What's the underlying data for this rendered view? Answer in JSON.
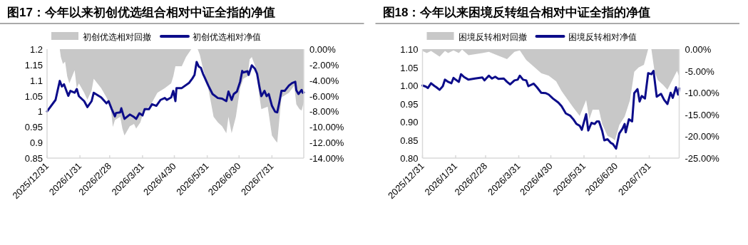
{
  "chart_data": [
    {
      "type": "line",
      "title": "图17：今年以来初创优选组合相对中证全指的净值",
      "legend": "top",
      "grid": false,
      "xlim": [
        "2025-12-31",
        "2026-08-30"
      ],
      "xticks": [
        {
          "value": "2025-12-31",
          "label": "2025/12/31"
        },
        {
          "value": "2026-01-31",
          "label": "2026/1/31"
        },
        {
          "value": "2026-02-28",
          "label": "2026/2/28"
        },
        {
          "value": "2026-03-31",
          "label": "2026/3/31"
        },
        {
          "value": "2026-04-30",
          "label": "2026/4/30"
        },
        {
          "value": "2026-05-31",
          "label": "2026/5/31"
        },
        {
          "value": "2026-06-30",
          "label": "2026/6/30"
        },
        {
          "value": "2026-07-31",
          "label": "2026/7/31"
        }
      ],
      "ylim": [
        0.85,
        1.2
      ],
      "yticks": [
        0.85,
        0.9,
        0.95,
        1,
        1.05,
        1.1,
        1.15,
        1.2
      ],
      "y2lim": [
        -14,
        0
      ],
      "y2ticks": [
        {
          "value": -14,
          "label": "-14.00%"
        },
        {
          "value": -12,
          "label": "-12.00%"
        },
        {
          "value": -10,
          "label": "-10.00%"
        },
        {
          "value": -8,
          "label": "-8.00%"
        },
        {
          "value": -6,
          "label": "-6.00%"
        },
        {
          "value": -4,
          "label": "-4.00%"
        },
        {
          "value": -2,
          "label": "-2.00%"
        },
        {
          "value": 0,
          "label": "0.00%"
        }
      ],
      "series": [
        {
          "name": "初创优选相对回撤",
          "type": "area",
          "axis": "y2",
          "color": "#c8c8c8",
          "x": [
            "2025-12-31",
            "2026-01-12",
            "2026-01-13",
            "2026-01-15",
            "2026-01-17",
            "2026-01-19",
            "2026-01-21",
            "2026-01-26",
            "2026-01-28",
            "2026-01-30",
            "2026-02-04",
            "2026-02-07",
            "2026-02-11",
            "2026-02-13",
            "2026-02-20",
            "2026-02-25",
            "2026-03-01",
            "2026-03-03",
            "2026-03-05",
            "2026-03-10",
            "2026-03-12",
            "2026-03-14",
            "2026-03-19",
            "2026-03-23",
            "2026-03-25",
            "2026-03-29",
            "2026-04-01",
            "2026-04-08",
            "2026-04-14",
            "2026-04-21",
            "2026-04-27",
            "2026-04-29",
            "2026-05-01",
            "2026-05-07",
            "2026-05-11",
            "2026-05-15",
            "2026-05-16",
            "2026-05-22",
            "2026-05-24",
            "2026-05-27",
            "2026-05-31",
            "2026-06-03",
            "2026-06-06",
            "2026-06-10",
            "2026-06-14",
            "2026-06-18",
            "2026-06-20",
            "2026-06-23",
            "2026-06-27",
            "2026-07-01",
            "2026-07-04",
            "2026-07-08",
            "2026-07-10",
            "2026-07-12",
            "2026-07-16",
            "2026-07-19",
            "2026-07-21",
            "2026-07-27",
            "2026-07-31",
            "2026-08-03",
            "2026-08-05",
            "2026-08-07",
            "2026-08-09",
            "2026-08-16",
            "2026-08-21",
            "2026-08-23",
            "2026-08-26",
            "2026-08-28",
            "2026-08-30"
          ],
          "values": [
            0,
            0,
            -1.0,
            -1.9,
            -1.6,
            -3.5,
            -4.4,
            -2.7,
            -5.0,
            -4.4,
            -5.6,
            -6.5,
            -5.3,
            -3.8,
            -5.0,
            -6.2,
            -7.4,
            -10.0,
            -9.1,
            -8.7,
            -10.2,
            -11.1,
            -9.9,
            -9.6,
            -10.2,
            -9.4,
            -8.0,
            -7.1,
            -5.6,
            -5.0,
            -4.4,
            -3.5,
            -2.2,
            -2.2,
            -1.0,
            -0.2,
            0,
            0,
            -0.7,
            -2.5,
            -4.4,
            -6.5,
            -8.7,
            -9.4,
            -9.9,
            -10.8,
            -8.7,
            -10.8,
            -8.7,
            -5.0,
            -3.8,
            -3.5,
            -1.3,
            -1.0,
            -2.5,
            -5.9,
            -7.7,
            -7.4,
            -11.1,
            -11.7,
            -12.0,
            -9.0,
            -6.2,
            -5.6,
            -4.7,
            -7.1,
            -7.7,
            -7.9,
            -6.8
          ]
        },
        {
          "name": "初创优选相对净值",
          "color": "#0c0c8a",
          "x": [
            "2025-12-31",
            "2026-01-08",
            "2026-01-10",
            "2026-01-12",
            "2026-01-14",
            "2026-01-16",
            "2026-01-20",
            "2026-01-22",
            "2026-01-26",
            "2026-01-28",
            "2026-01-30",
            "2026-02-04",
            "2026-02-07",
            "2026-02-11",
            "2026-02-13",
            "2026-02-20",
            "2026-02-25",
            "2026-02-27",
            "2026-03-02",
            "2026-03-05",
            "2026-03-06",
            "2026-03-10",
            "2026-03-11",
            "2026-03-13",
            "2026-03-14",
            "2026-03-19",
            "2026-03-23",
            "2026-03-25",
            "2026-03-28",
            "2026-03-31",
            "2026-04-02",
            "2026-04-06",
            "2026-04-09",
            "2026-04-13",
            "2026-04-17",
            "2026-04-21",
            "2026-04-23",
            "2026-04-27",
            "2026-04-29",
            "2026-05-01",
            "2026-05-02",
            "2026-05-07",
            "2026-05-14",
            "2026-05-17",
            "2026-05-19",
            "2026-05-21",
            "2026-05-23",
            "2026-05-25",
            "2026-05-27",
            "2026-05-29",
            "2026-06-01",
            "2026-06-05",
            "2026-06-10",
            "2026-06-14",
            "2026-06-18",
            "2026-06-20",
            "2026-06-23",
            "2026-06-25",
            "2026-06-28",
            "2026-07-01",
            "2026-07-03",
            "2026-07-04",
            "2026-07-08",
            "2026-07-09",
            "2026-07-12",
            "2026-07-15",
            "2026-07-17",
            "2026-07-19",
            "2026-07-21",
            "2026-07-24",
            "2026-07-26",
            "2026-07-28",
            "2026-07-31",
            "2026-08-03",
            "2026-08-05",
            "2026-08-07",
            "2026-08-09",
            "2026-08-12",
            "2026-08-16",
            "2026-08-19",
            "2026-08-22",
            "2026-08-23",
            "2026-08-25",
            "2026-08-28",
            "2026-08-29",
            "2026-08-30"
          ],
          "values": [
            1.0,
            1.037,
            1.068,
            1.098,
            1.08,
            1.087,
            1.05,
            1.066,
            1.06,
            1.072,
            1.049,
            1.033,
            1.014,
            1.033,
            1.06,
            1.045,
            1.026,
            1.033,
            1.007,
            0.984,
            0.995,
            0.997,
            1.01,
            0.987,
            0.976,
            0.99,
            0.982,
            0.976,
            0.994,
            0.987,
            1.007,
            1.007,
            1.023,
            1.018,
            1.037,
            1.043,
            1.037,
            1.045,
            1.066,
            1.033,
            1.075,
            1.075,
            1.092,
            1.106,
            1.117,
            1.159,
            1.144,
            1.14,
            1.121,
            1.106,
            1.083,
            1.056,
            1.043,
            1.041,
            1.033,
            1.064,
            1.037,
            1.056,
            1.064,
            1.095,
            1.13,
            1.125,
            1.129,
            1.117,
            1.148,
            1.137,
            1.121,
            1.083,
            1.049,
            1.066,
            1.049,
            1.056,
            1.018,
            0.999,
            0.997,
            1.03,
            1.066,
            1.066,
            1.083,
            1.091,
            1.095,
            1.068,
            1.056,
            1.069,
            1.06,
            1.061
          ]
        }
      ]
    },
    {
      "type": "line",
      "title": "图18：今年以来困境反转组合相对中证全指的净值",
      "legend": "top",
      "grid": false,
      "xlim": [
        "2025-12-31",
        "2026-08-28"
      ],
      "xticks": [
        {
          "value": "2025-12-31",
          "label": "2025/12/31"
        },
        {
          "value": "2026-01-31",
          "label": "2026/1/31"
        },
        {
          "value": "2026-02-28",
          "label": "2026/2/28"
        },
        {
          "value": "2026-03-31",
          "label": "2026/3/31"
        },
        {
          "value": "2026-04-30",
          "label": "2026/4/30"
        },
        {
          "value": "2026-05-31",
          "label": "2026/5/31"
        },
        {
          "value": "2026-06-30",
          "label": "2026/6/30"
        },
        {
          "value": "2026-07-31",
          "label": "2026/7/31"
        }
      ],
      "ylim": [
        0.8,
        1.1
      ],
      "yticks": [
        {
          "value": 0.8,
          "label": "0.80"
        },
        {
          "value": 0.85,
          "label": "0.85"
        },
        {
          "value": 0.9,
          "label": "0.90"
        },
        {
          "value": 0.95,
          "label": "0.95"
        },
        {
          "value": 1.0,
          "label": "1.00"
        },
        {
          "value": 1.05,
          "label": "1.05"
        },
        {
          "value": 1.1,
          "label": "1.10"
        }
      ],
      "y2lim": [
        -25,
        0
      ],
      "y2ticks": [
        {
          "value": -25,
          "label": "-25.00%"
        },
        {
          "value": -20,
          "label": "-20.00%"
        },
        {
          "value": -15,
          "label": "-15.00%"
        },
        {
          "value": -10,
          "label": "-10.00%"
        },
        {
          "value": -5,
          "label": "-5.00%"
        },
        {
          "value": 0,
          "label": "0.00%"
        }
      ],
      "series": [
        {
          "name": "困境反转相对回撤",
          "type": "area",
          "axis": "y2",
          "color": "#c8c8c8",
          "x": [
            "2025-12-31",
            "2026-01-04",
            "2026-01-08",
            "2026-01-11",
            "2026-01-16",
            "2026-01-21",
            "2026-01-24",
            "2026-01-29",
            "2026-02-03",
            "2026-02-06",
            "2026-02-12",
            "2026-02-25",
            "2026-03-03",
            "2026-03-12",
            "2026-03-20",
            "2026-03-27",
            "2026-04-01",
            "2026-04-07",
            "2026-04-15",
            "2026-04-21",
            "2026-04-28",
            "2026-05-05",
            "2026-05-10",
            "2026-05-16",
            "2026-05-21",
            "2026-05-27",
            "2026-06-02",
            "2026-06-05",
            "2026-06-08",
            "2026-06-14",
            "2026-06-17",
            "2026-06-22",
            "2026-06-26",
            "2026-06-29",
            "2026-07-03",
            "2026-07-08",
            "2026-07-13",
            "2026-07-17",
            "2026-07-21",
            "2026-07-26",
            "2026-07-30",
            "2026-08-02",
            "2026-08-05",
            "2026-08-08",
            "2026-08-13",
            "2026-08-17",
            "2026-08-22",
            "2026-08-26",
            "2026-08-28"
          ],
          "values": [
            -0.4,
            -0.9,
            -0.4,
            -0.9,
            -1.7,
            -0.4,
            -0.9,
            -0.3,
            -0.9,
            -0.1,
            -1.4,
            -0.9,
            -0.6,
            -1.5,
            -2.3,
            -0.6,
            -0.3,
            -2.5,
            -4.2,
            -5.5,
            -6.1,
            -7.4,
            -9.6,
            -11.7,
            -13.4,
            -15.3,
            -11.7,
            -16.1,
            -13.9,
            -13.9,
            -17.2,
            -19.9,
            -20.4,
            -20.9,
            -17.4,
            -15.5,
            -11.7,
            -5.2,
            -4.2,
            -3.6,
            0,
            0,
            -5.2,
            -7.1,
            -8.2,
            -9.3,
            -6.9,
            -5.0,
            -6.3
          ]
        },
        {
          "name": "困境反转相对净值",
          "color": "#0c0c8a",
          "x": [
            "2025-12-31",
            "2026-01-03",
            "2026-01-05",
            "2026-01-08",
            "2026-01-11",
            "2026-01-13",
            "2026-01-16",
            "2026-01-19",
            "2026-01-21",
            "2026-01-24",
            "2026-01-27",
            "2026-01-29",
            "2026-01-31",
            "2026-02-03",
            "2026-02-05",
            "2026-02-08",
            "2026-02-12",
            "2026-02-18",
            "2026-02-25",
            "2026-02-27",
            "2026-03-03",
            "2026-03-06",
            "2026-03-09",
            "2026-03-12",
            "2026-03-17",
            "2026-03-20",
            "2026-03-23",
            "2026-03-27",
            "2026-03-30",
            "2026-04-01",
            "2026-04-04",
            "2026-04-07",
            "2026-04-09",
            "2026-04-14",
            "2026-04-17",
            "2026-04-21",
            "2026-04-25",
            "2026-04-28",
            "2026-05-02",
            "2026-05-07",
            "2026-05-10",
            "2026-05-14",
            "2026-05-18",
            "2026-05-21",
            "2026-05-24",
            "2026-05-27",
            "2026-05-29",
            "2026-06-02",
            "2026-06-04",
            "2026-06-07",
            "2026-06-10",
            "2026-06-12",
            "2026-06-14",
            "2026-06-17",
            "2026-06-19",
            "2026-06-22",
            "2026-06-25",
            "2026-06-27",
            "2026-06-30",
            "2026-07-03",
            "2026-07-06",
            "2026-07-08",
            "2026-07-09",
            "2026-07-12",
            "2026-07-15",
            "2026-07-17",
            "2026-07-20",
            "2026-07-22",
            "2026-07-24",
            "2026-07-27",
            "2026-07-30",
            "2026-08-02",
            "2026-08-04",
            "2026-08-07",
            "2026-08-11",
            "2026-08-14",
            "2026-08-17",
            "2026-08-20",
            "2026-08-22",
            "2026-08-25",
            "2026-08-27",
            "2026-08-28"
          ],
          "values": [
            1.0,
            0.997,
            0.993,
            1.006,
            0.999,
            0.995,
            0.988,
            0.998,
            1.016,
            1.01,
            1.006,
            1.021,
            1.016,
            1.01,
            1.031,
            1.023,
            1.016,
            1.019,
            1.022,
            1.014,
            1.027,
            1.019,
            1.024,
            1.018,
            1.019,
            1.01,
            1.003,
            1.014,
            1.016,
            1.027,
            1.016,
            1.014,
            0.998,
            1.005,
            0.995,
            0.98,
            0.979,
            0.975,
            0.964,
            0.953,
            0.943,
            0.923,
            0.917,
            0.907,
            0.894,
            0.889,
            0.878,
            0.921,
            0.876,
            0.897,
            0.894,
            0.901,
            0.901,
            0.875,
            0.849,
            0.852,
            0.842,
            0.839,
            0.826,
            0.868,
            0.881,
            0.894,
            0.871,
            0.907,
            0.901,
            0.979,
            0.99,
            0.956,
            0.971,
            0.964,
            1.034,
            1.031,
            1.04,
            0.969,
            0.977,
            0.96,
            0.949,
            0.98,
            0.966,
            0.995,
            0.975,
            0.992
          ]
        }
      ]
    }
  ]
}
